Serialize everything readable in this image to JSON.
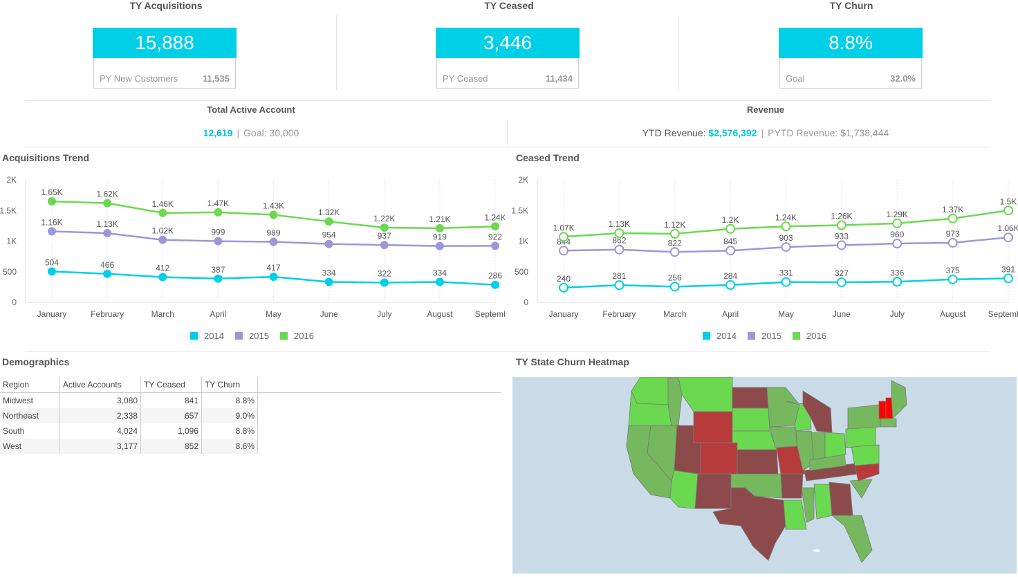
{
  "kpis": [
    {
      "title": "TY Acquisitions",
      "value": "15,888",
      "sub_label": "PY New Customers",
      "sub_value": "11,535"
    },
    {
      "title": "TY Ceased",
      "value": "3,446",
      "sub_label": "PY Ceased",
      "sub_value": "11,434"
    },
    {
      "title": "TY Churn",
      "value": "8.8%",
      "sub_label": "Goal",
      "sub_value": "32.0%"
    }
  ],
  "total_active": {
    "title": "Total Active Account",
    "value": "12,619",
    "goal_label": "Goal:",
    "goal_value": "30,000"
  },
  "revenue": {
    "title": "Revenue",
    "ytd_label": "YTD Revenue:",
    "ytd_value": "$2,576,392",
    "pytd_label": "PYTD Revenue:",
    "pytd_value": "$1,738,444"
  },
  "colors": {
    "s2014": "#00cfe8",
    "s2015": "#9b98d8",
    "s2016": "#6bd94f",
    "kpi": "#00cfe8"
  },
  "chart_data": [
    {
      "type": "line",
      "title": "Acquisitions Trend",
      "categories": [
        "January",
        "February",
        "March",
        "April",
        "May",
        "June",
        "July",
        "August",
        "September"
      ],
      "yticks": [
        "0",
        "500",
        "1K",
        "1.5K",
        "2K"
      ],
      "ylim": [
        0,
        2000
      ],
      "filled_markers": true,
      "series": [
        {
          "name": "2014",
          "values": [
            504,
            466,
            412,
            387,
            417,
            334,
            322,
            334,
            286
          ],
          "labels": [
            "504",
            "466",
            "412",
            "387",
            "417",
            "334",
            "322",
            "334",
            "286"
          ]
        },
        {
          "name": "2015",
          "values": [
            1160,
            1130,
            1020,
            999,
            989,
            954,
            937,
            919,
            922
          ],
          "labels": [
            "1.16K",
            "1.13K",
            "1.02K",
            "999",
            "989",
            "954",
            "937",
            "919",
            "922"
          ]
        },
        {
          "name": "2016",
          "values": [
            1650,
            1620,
            1460,
            1470,
            1430,
            1320,
            1220,
            1210,
            1240
          ],
          "labels": [
            "1.65K",
            "1.62K",
            "1.46K",
            "1.47K",
            "1.43K",
            "1.32K",
            "1.22K",
            "1.21K",
            "1.24K"
          ]
        }
      ],
      "legend": [
        "2014",
        "2015",
        "2016"
      ]
    },
    {
      "type": "line",
      "title": "Ceased Trend",
      "categories": [
        "January",
        "February",
        "March",
        "April",
        "May",
        "June",
        "July",
        "August",
        "September"
      ],
      "yticks": [
        "0",
        "500",
        "1K",
        "1.5K",
        "2K"
      ],
      "ylim": [
        0,
        2000
      ],
      "filled_markers": false,
      "series": [
        {
          "name": "2014",
          "values": [
            240,
            281,
            256,
            284,
            331,
            327,
            336,
            375,
            391
          ],
          "labels": [
            "240",
            "281",
            "256",
            "284",
            "331",
            "327",
            "336",
            "375",
            "391"
          ]
        },
        {
          "name": "2015",
          "values": [
            844,
            862,
            822,
            845,
            903,
            933,
            960,
            973,
            1060
          ],
          "labels": [
            "844",
            "862",
            "822",
            "845",
            "903",
            "933",
            "960",
            "973",
            "1.06K"
          ]
        },
        {
          "name": "2016",
          "values": [
            1070,
            1130,
            1120,
            1200,
            1240,
            1260,
            1290,
            1370,
            1500
          ],
          "labels": [
            "1.07K",
            "1.13K",
            "1.12K",
            "1.2K",
            "1.24K",
            "1.26K",
            "1.29K",
            "1.37K",
            "1.5K"
          ]
        }
      ],
      "legend": [
        "2014",
        "2015",
        "2016"
      ]
    }
  ],
  "demographics": {
    "title": "Demographics",
    "headers": [
      "Region",
      "Active Accounts",
      "TY Ceased",
      "TY Churn"
    ],
    "rows": [
      [
        "Midwest",
        "3,080",
        "841",
        "8.8%"
      ],
      [
        "Northeast",
        "2,338",
        "657",
        "9.0%"
      ],
      [
        "South",
        "4,024",
        "1,096",
        "8.8%"
      ],
      [
        "West",
        "3,177",
        "852",
        "8.6%"
      ]
    ]
  },
  "heatmap": {
    "title": "TY State Churn Heatmap"
  }
}
